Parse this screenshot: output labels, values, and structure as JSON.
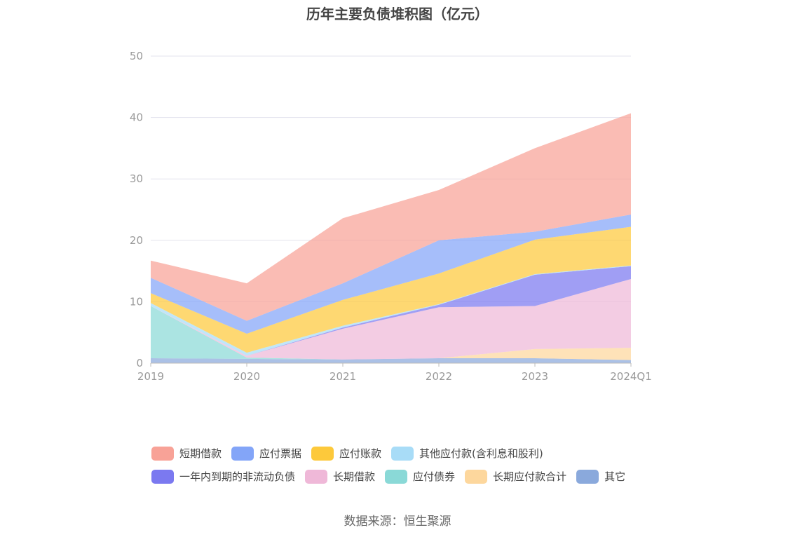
{
  "chart_data": {
    "type": "area",
    "stacked": true,
    "title": "历年主要负债堆积图（亿元）",
    "x": [
      "2019",
      "2020",
      "2021",
      "2022",
      "2023",
      "2024Q1"
    ],
    "ylim": [
      0,
      50
    ],
    "yticks": [
      0,
      10,
      20,
      30,
      40,
      50
    ],
    "grid": true,
    "legend_position": "bottom",
    "series": [
      {
        "name": "其它",
        "color": "#8aa9dc",
        "values": [
          0.8,
          0.7,
          0.6,
          0.8,
          0.8,
          0.5
        ]
      },
      {
        "name": "长期应付款合计",
        "color": "#fdd79d",
        "values": [
          0.0,
          0.0,
          0.0,
          0.0,
          1.5,
          2.0
        ]
      },
      {
        "name": "应付债券",
        "color": "#8ad9d7",
        "values": [
          8.5,
          0.2,
          0.0,
          0.0,
          0.0,
          0.0
        ]
      },
      {
        "name": "长期借款",
        "color": "#efb8d8",
        "values": [
          0.0,
          0.3,
          5.0,
          8.3,
          7.0,
          11.2
        ]
      },
      {
        "name": "一年内到期的非流动负债",
        "color": "#7b79f0",
        "values": [
          0.0,
          0.0,
          0.2,
          0.4,
          5.1,
          2.1
        ]
      },
      {
        "name": "其他应付款(含利息和股利)",
        "color": "#a8dcf7",
        "values": [
          0.5,
          0.5,
          0.3,
          0.1,
          0.1,
          0.1
        ]
      },
      {
        "name": "应付账款",
        "color": "#fdc93b",
        "values": [
          1.6,
          3.1,
          4.2,
          5.0,
          5.6,
          6.3
        ]
      },
      {
        "name": "应付票据",
        "color": "#83a5f8",
        "values": [
          2.5,
          2.1,
          2.7,
          5.4,
          1.3,
          2.0
        ]
      },
      {
        "name": "短期借款",
        "color": "#f8a297",
        "values": [
          2.8,
          6.1,
          10.6,
          8.2,
          13.6,
          16.5
        ]
      }
    ]
  },
  "legend": {
    "row1": [
      {
        "label": "短期借款",
        "color": "#f8a297"
      },
      {
        "label": "应付票据",
        "color": "#83a5f8"
      },
      {
        "label": "应付账款",
        "color": "#fdc93b"
      },
      {
        "label": "其他应付款(含利息和股利)",
        "color": "#a8dcf7"
      }
    ],
    "row2": [
      {
        "label": "一年内到期的非流动负债",
        "color": "#7b79f0"
      },
      {
        "label": "长期借款",
        "color": "#efb8d8"
      },
      {
        "label": "应付债券",
        "color": "#8ad9d7"
      },
      {
        "label": "长期应付款合计",
        "color": "#fdd79d"
      },
      {
        "label": "其它",
        "color": "#8aa9dc"
      }
    ]
  },
  "source": "数据来源：恒生聚源"
}
